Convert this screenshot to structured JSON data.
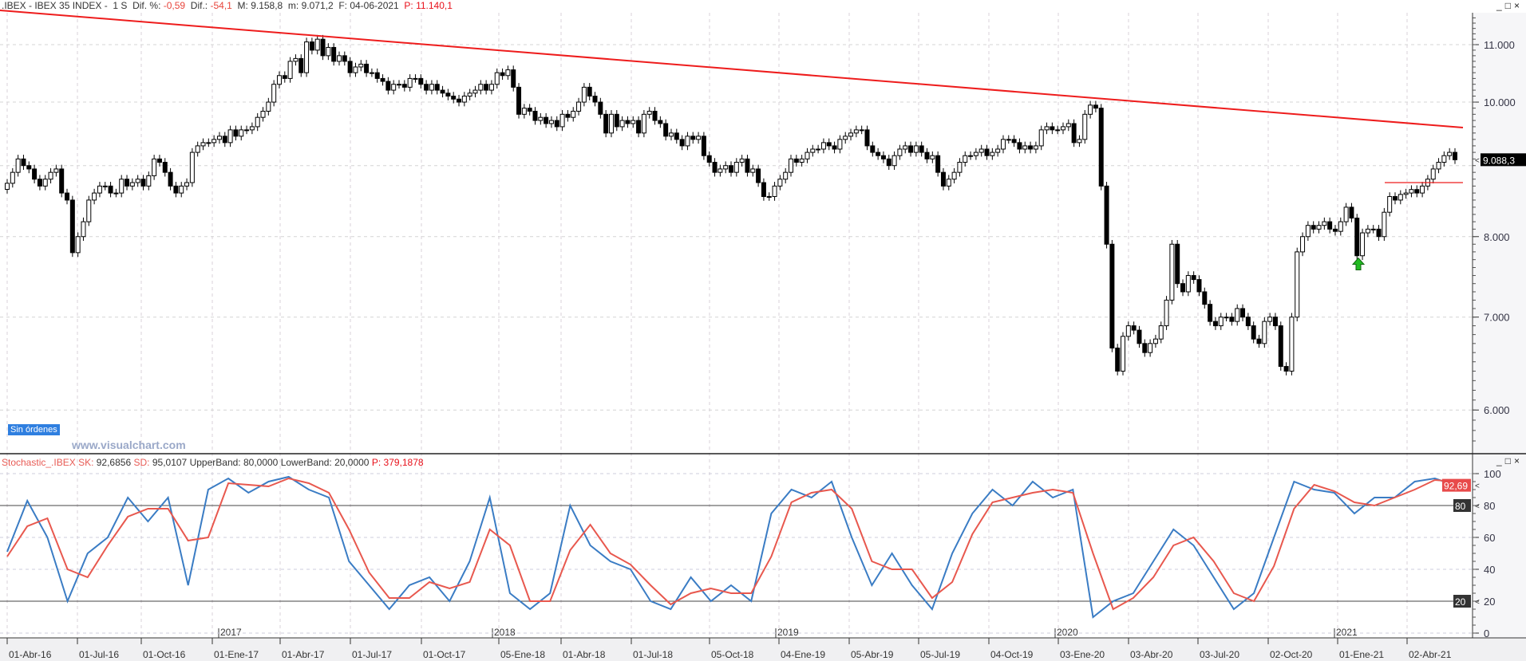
{
  "header": {
    "symbol": ".IBEX - IBEX 35 INDEX -  1 S",
    "dif_pct_label": "Dif. %:",
    "dif_pct": "-0,59",
    "dif_label": "Dif.:",
    "dif": "-54,1",
    "max_label": "M:",
    "max": "9.158,8",
    "min_label": "m:",
    "min": "9.071,2",
    "date_label": "F:",
    "date": "04-06-2021",
    "p_label": "P:",
    "p": "11.140,1"
  },
  "window_buttons": {
    "minimize": "_",
    "maximize": "□",
    "close": "×"
  },
  "orders_badge": "Sin órdenes",
  "watermark": "www.visualchart.com",
  "stoch_header": {
    "name": "Stochastic_.IBEX",
    "sk_label": "SK:",
    "sk": "92,6856",
    "sd_label": "SD:",
    "sd": "95,0107",
    "upper_label": "UpperBand:",
    "upper": "80,0000",
    "lower_label": "LowerBand:",
    "lower": "20,0000",
    "p_label": "P:",
    "p": "379,1878"
  },
  "colors": {
    "trendline": "#ee1c1c",
    "sk": "#3a7cc4",
    "sd": "#e8584e",
    "arrow": "#22bb22",
    "badge": "#2f7fe0"
  },
  "chart_data": [
    {
      "type": "candlestick",
      "scale": "log",
      "grid": true,
      "yticks": [
        "11.000",
        "10.000",
        "8.000",
        "7.000",
        "6.000"
      ],
      "ytick_values": [
        11000,
        10000,
        8000,
        7000,
        6000
      ],
      "last_price_label": "9.088,3",
      "xticks": [
        "01-Abr-16",
        "01-Jul-16",
        "01-Oct-16",
        "01-Ene-17",
        "01-Abr-17",
        "01-Jul-17",
        "01-Oct-17",
        "05-Ene-18",
        "01-Abr-18",
        "01-Jul-18",
        "05-Oct-18",
        "04-Ene-19",
        "05-Abr-19",
        "05-Jul-19",
        "04-Oct-19",
        "03-Ene-20",
        "03-Abr-20",
        "03-Jul-20",
        "02-Oct-20",
        "01-Ene-21",
        "02-Abr-21"
      ],
      "years": [
        "2017",
        "2018",
        "2019",
        "2020",
        "2021"
      ],
      "closes": [
        8740,
        8900,
        9100,
        9000,
        8950,
        8800,
        8700,
        8800,
        8900,
        8950,
        8600,
        8500,
        7790,
        8000,
        8200,
        8500,
        8600,
        8700,
        8700,
        8600,
        8600,
        8800,
        8700,
        8750,
        8800,
        8700,
        8850,
        9100,
        9050,
        8900,
        8700,
        8600,
        8700,
        8750,
        9200,
        9300,
        9350,
        9350,
        9400,
        9450,
        9350,
        9550,
        9450,
        9550,
        9550,
        9600,
        9750,
        9850,
        10000,
        10300,
        10450,
        10400,
        10700,
        10750,
        10500,
        11050,
        10900,
        11100,
        10800,
        10950,
        10700,
        10800,
        10700,
        10500,
        10600,
        10650,
        10500,
        10500,
        10400,
        10350,
        10200,
        10300,
        10300,
        10250,
        10400,
        10400,
        10300,
        10200,
        10300,
        10200,
        10150,
        10100,
        10050,
        10000,
        10100,
        10150,
        10200,
        10300,
        10200,
        10300,
        10500,
        10450,
        10550,
        10250,
        9800,
        9900,
        9850,
        9700,
        9750,
        9650,
        9700,
        9600,
        9800,
        9750,
        9850,
        10000,
        10250,
        10100,
        10000,
        9800,
        9500,
        9800,
        9600,
        9700,
        9650,
        9700,
        9500,
        9800,
        9850,
        9700,
        9650,
        9450,
        9500,
        9400,
        9300,
        9450,
        9400,
        9450,
        9150,
        9050,
        8900,
        8950,
        9000,
        8900,
        9050,
        9100,
        8900,
        8950,
        8750,
        8550,
        8550,
        8700,
        8800,
        8900,
        9100,
        9050,
        9100,
        9200,
        9250,
        9250,
        9350,
        9300,
        9250,
        9400,
        9450,
        9500,
        9550,
        9550,
        9300,
        9200,
        9150,
        9100,
        9000,
        9150,
        9250,
        9300,
        9200,
        9300,
        9200,
        9100,
        9150,
        8900,
        8700,
        8800,
        8900,
        9050,
        9150,
        9150,
        9200,
        9250,
        9150,
        9200,
        9250,
        9400,
        9400,
        9350,
        9250,
        9300,
        9250,
        9300,
        9550,
        9600,
        9550,
        9550,
        9600,
        9650,
        9350,
        9400,
        9800,
        9950,
        9900,
        8700,
        7900,
        6650,
        6400,
        6780,
        6900,
        6850,
        6700,
        6600,
        6700,
        6750,
        6900,
        7200,
        7900,
        7400,
        7300,
        7500,
        7450,
        7300,
        7150,
        6950,
        6900,
        7000,
        7000,
        6950,
        7100,
        7000,
        6900,
        6750,
        6700,
        6950,
        7000,
        6900,
        6450,
        6400,
        7000,
        7800,
        8000,
        8150,
        8100,
        8150,
        8200,
        8100,
        8070,
        8200,
        8400,
        8250,
        7750,
        8050,
        8100,
        8100,
        8000,
        8330,
        8550,
        8500,
        8580,
        8600,
        8650,
        8600,
        8700,
        8800,
        8950,
        9050,
        9150,
        9200,
        9088.3
      ],
      "annotations": {
        "trendline": {
          "start": 11644,
          "end": 9586
        },
        "resistance": 8750,
        "buy_arrow": 7640
      }
    },
    {
      "type": "line",
      "title": "Stochastic_.IBEX",
      "ylim": [
        0,
        100
      ],
      "yticks": [
        "100",
        "80",
        "60",
        "40",
        "20",
        "0"
      ],
      "bands": {
        "upper": 80,
        "lower": 20
      },
      "tags": {
        "sk": "92,69",
        "upper": "80",
        "lower": "20"
      },
      "series": [
        {
          "name": "SK",
          "values": [
            51,
            83,
            60,
            20,
            50,
            60,
            85,
            70,
            85,
            30,
            90,
            97,
            88,
            95,
            98,
            90,
            85,
            45,
            30,
            15,
            30,
            35,
            20,
            45,
            85,
            25,
            15,
            25,
            80,
            55,
            45,
            40,
            20,
            15,
            35,
            20,
            30,
            20,
            75,
            90,
            85,
            95,
            60,
            30,
            50,
            30,
            15,
            50,
            75,
            90,
            80,
            95,
            85,
            90,
            10,
            20,
            25,
            45,
            65,
            55,
            35,
            15,
            25,
            60,
            95,
            90,
            88,
            75,
            85,
            85,
            95,
            97,
            92.69
          ]
        },
        {
          "name": "SD",
          "values": [
            48,
            67,
            72,
            40,
            35,
            55,
            73,
            78,
            78,
            58,
            60,
            94,
            93,
            92,
            97,
            94,
            88,
            65,
            38,
            22,
            22,
            32,
            28,
            32,
            65,
            55,
            20,
            20,
            52,
            68,
            50,
            43,
            30,
            18,
            25,
            28,
            25,
            25,
            48,
            82,
            88,
            90,
            78,
            45,
            40,
            40,
            22,
            32,
            62,
            82,
            85,
            88,
            90,
            88,
            50,
            15,
            22,
            35,
            55,
            60,
            45,
            25,
            20,
            42,
            78,
            93,
            89,
            82,
            80,
            85,
            90,
            96,
            95.01
          ]
        }
      ]
    }
  ]
}
